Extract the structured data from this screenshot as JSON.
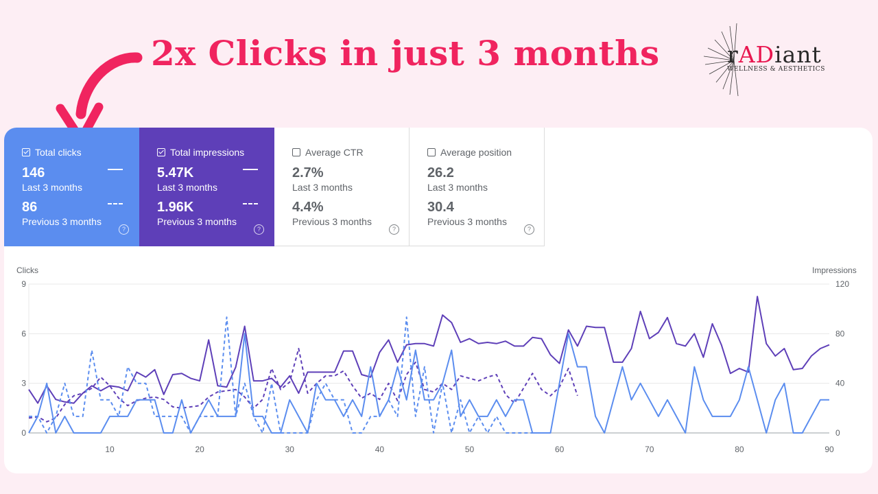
{
  "headline": "2x Clicks in just 3 months",
  "logo": {
    "prefix": "r",
    "accent": "AD",
    "suffix": "iant",
    "subtitle": "WELLNESS & AESTHETICS"
  },
  "colors": {
    "clicks": "#5b8def",
    "impressions": "#5e3fb8",
    "headline": "#f0245f",
    "background": "#fdeef4"
  },
  "metrics": [
    {
      "label": "Total clicks",
      "checked": true,
      "value": "146",
      "period": "Last 3 months",
      "prev_value": "86",
      "prev_period": "Previous 3 months"
    },
    {
      "label": "Total impressions",
      "checked": true,
      "value": "5.47K",
      "period": "Last 3 months",
      "prev_value": "1.96K",
      "prev_period": "Previous 3 months"
    },
    {
      "label": "Average CTR",
      "checked": false,
      "value": "2.7%",
      "period": "Last 3 months",
      "prev_value": "4.4%",
      "prev_period": "Previous 3 months"
    },
    {
      "label": "Average position",
      "checked": false,
      "value": "26.2",
      "period": "Last 3 months",
      "prev_value": "30.4",
      "prev_period": "Previous 3 months"
    }
  ],
  "help_glyph": "?",
  "chart_data": {
    "type": "line",
    "y_left_label": "Clicks",
    "y_right_label": "Impressions",
    "y_left_ticks": [
      0,
      3,
      6,
      9
    ],
    "y_right_ticks": [
      0,
      40,
      80,
      120
    ],
    "x_ticks": [
      10,
      20,
      30,
      40,
      50,
      60,
      70,
      80,
      90
    ],
    "xlim": [
      1,
      90
    ],
    "ylim_left": [
      0,
      9
    ],
    "ylim_right": [
      0,
      120
    ],
    "grid": true,
    "series": [
      {
        "axis": "right",
        "style": "solid",
        "color": "#5e3fb8",
        "start_x": 1,
        "values": [
          35,
          24,
          38,
          27,
          25,
          24,
          32,
          38,
          34,
          38,
          37,
          34,
          49,
          45,
          51,
          31,
          47,
          48,
          44,
          42,
          75,
          38,
          37,
          53,
          86,
          42,
          42,
          44,
          37,
          46,
          32,
          49,
          49,
          49,
          49,
          66,
          66,
          47,
          45,
          65,
          75,
          57,
          71,
          72,
          72,
          70,
          95,
          89,
          73,
          76,
          72,
          73,
          72,
          74,
          70,
          70,
          77,
          76,
          63,
          56,
          83,
          70,
          86,
          85,
          85,
          57,
          57,
          68,
          98,
          76,
          81,
          93,
          72,
          70,
          80,
          61,
          88,
          71,
          48,
          52,
          49,
          110,
          72,
          62,
          68,
          51,
          52,
          62,
          68,
          71
        ]
      },
      {
        "axis": "right",
        "style": "dashed",
        "color": "#5e3fb8",
        "start_x": 1,
        "values": [
          12,
          13,
          9,
          12,
          23,
          30,
          32,
          36,
          45,
          38,
          28,
          22,
          26,
          28,
          29,
          27,
          21,
          20,
          21,
          22,
          29,
          33,
          34,
          35,
          29,
          20,
          27,
          52,
          35,
          41,
          68,
          32,
          40,
          46,
          46,
          50,
          38,
          28,
          32,
          27,
          40,
          26,
          47,
          57,
          35,
          33,
          40,
          35,
          46,
          44,
          42,
          45,
          47,
          31,
          24,
          36,
          48,
          35,
          30,
          37,
          52,
          30
        ]
      },
      {
        "axis": "left",
        "style": "solid",
        "color": "#5b8def",
        "start_x": 1,
        "values": [
          0,
          1,
          3,
          0,
          1,
          0,
          0,
          0,
          0,
          1,
          1,
          1,
          2,
          2,
          2,
          0,
          0,
          2,
          0,
          1,
          2,
          1,
          1,
          1,
          6,
          1,
          1,
          0,
          0,
          2,
          1,
          0,
          3,
          2,
          2,
          1,
          2,
          1,
          4,
          1,
          2,
          4,
          2,
          5,
          2,
          2,
          3,
          5,
          1,
          2,
          1,
          1,
          2,
          1,
          2,
          2,
          0,
          0,
          0,
          3,
          6,
          4,
          4,
          1,
          0,
          2,
          4,
          2,
          3,
          2,
          1,
          2,
          1,
          0,
          4,
          2,
          1,
          1,
          1,
          2,
          4,
          2,
          0,
          2,
          3,
          0,
          0,
          1,
          2,
          2
        ]
      },
      {
        "axis": "left",
        "style": "dashed",
        "color": "#5b8def",
        "start_x": 1,
        "values": [
          1,
          1,
          0,
          1,
          3,
          1,
          1,
          5,
          2,
          2,
          1,
          4,
          3,
          3,
          1,
          1,
          1,
          1,
          0,
          1,
          1,
          1,
          7,
          1,
          3,
          1,
          0,
          3,
          0,
          0,
          0,
          0,
          2,
          3,
          2,
          2,
          0,
          0,
          1,
          1,
          2,
          1,
          7,
          1,
          4,
          0,
          3,
          0,
          2,
          0,
          1,
          0,
          1,
          0,
          0,
          0,
          0,
          0,
          0
        ]
      }
    ]
  }
}
